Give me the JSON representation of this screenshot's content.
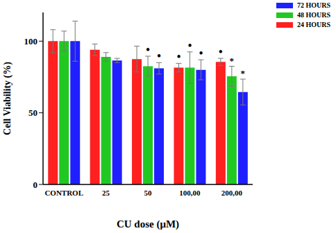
{
  "chart_data": {
    "type": "bar",
    "x_label": "CU dose (μM)",
    "y_label": "Cell Viability (%)",
    "categories": [
      "CONTROL",
      "25",
      "50",
      "100,00",
      "200,00"
    ],
    "ylim": [
      0,
      120
    ],
    "yticks": [
      0,
      50,
      100
    ],
    "grid": false,
    "legend": "upper right",
    "series": [
      {
        "name": "24 HOURS",
        "color": "#ff2020",
        "values": [
          100,
          94,
          87.5,
          81.5,
          85.5
        ],
        "errors": [
          8,
          4,
          9,
          3,
          2.5
        ],
        "annotations": [
          null,
          null,
          null,
          "•",
          "•"
        ]
      },
      {
        "name": "48 HOURS",
        "color": "#22c822",
        "values": [
          100,
          89,
          82.5,
          81.5,
          75.5
        ],
        "errors": [
          7,
          3,
          7,
          11,
          7
        ],
        "annotations": [
          null,
          null,
          "•",
          "•",
          "*"
        ]
      },
      {
        "name": "72 HOURS",
        "color": "#1f1fff",
        "values": [
          100,
          86.5,
          81,
          80,
          64.5
        ],
        "errors": [
          14,
          1.5,
          4,
          7,
          9
        ],
        "annotations": [
          null,
          null,
          "•",
          "•",
          "*"
        ]
      }
    ]
  }
}
